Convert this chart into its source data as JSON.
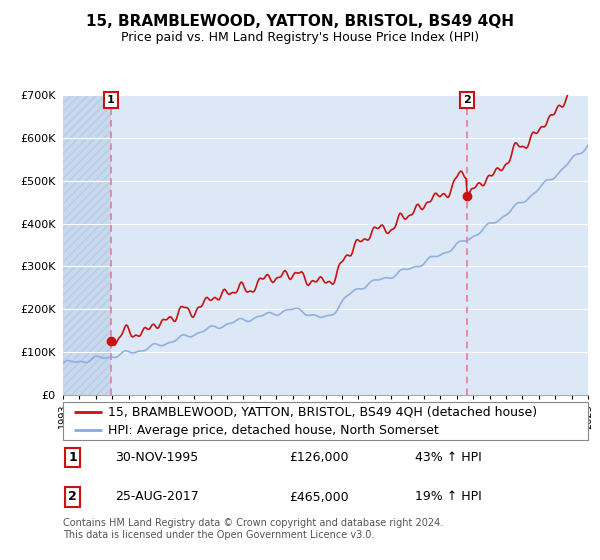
{
  "title": "15, BRAMBLEWOOD, YATTON, BRISTOL, BS49 4QH",
  "subtitle": "Price paid vs. HM Land Registry's House Price Index (HPI)",
  "legend_line1": "15, BRAMBLEWOOD, YATTON, BRISTOL, BS49 4QH (detached house)",
  "legend_line2": "HPI: Average price, detached house, North Somerset",
  "annotation1_date": "30-NOV-1995",
  "annotation1_price": "£126,000",
  "annotation1_hpi": "43% ↑ HPI",
  "annotation2_date": "25-AUG-2017",
  "annotation2_price": "£465,000",
  "annotation2_hpi": "19% ↑ HPI",
  "footer": "Contains HM Land Registry data © Crown copyright and database right 2024.\nThis data is licensed under the Open Government Licence v3.0.",
  "ylim": [
    0,
    700000
  ],
  "ytick_vals": [
    0,
    100000,
    200000,
    300000,
    400000,
    500000,
    600000,
    700000
  ],
  "ytick_labels": [
    "£0",
    "£100K",
    "£200K",
    "£300K",
    "£400K",
    "£500K",
    "£600K",
    "£700K"
  ],
  "xmin": 1993,
  "xmax": 2025,
  "background_color": "#ffffff",
  "plot_bg_color": "#dce8f5",
  "hatch_bg_color": "#c8d8ee",
  "grid_color": "#ffffff",
  "red_line_color": "#cc1111",
  "blue_line_color": "#88aadd",
  "vline_color": "#ee6688",
  "marker_color": "#cc1111",
  "ann_box_color": "#cc1111",
  "title_fontsize": 11,
  "subtitle_fontsize": 9,
  "tick_fontsize": 8,
  "legend_fontsize": 9,
  "ann_fontsize": 9,
  "footer_fontsize": 7,
  "sale1_year": 1995.9167,
  "sale1_price": 126000,
  "sale2_year": 2017.625,
  "sale2_price": 465000
}
